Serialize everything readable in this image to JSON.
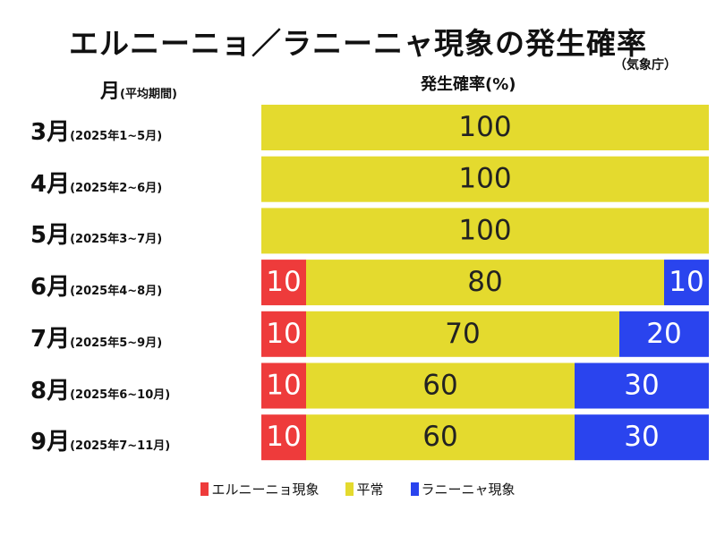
{
  "chart_data": {
    "type": "bar",
    "stacked": true,
    "orientation": "horizontal",
    "title": "エルニーニョ／ラニーニャ現象の発生確率",
    "source": "（気象庁）",
    "month_header": {
      "main": "月",
      "sub": "(平均期間)"
    },
    "value_header": "発生確率(%)",
    "categories": [
      {
        "main": "3月",
        "sub": "(2025年1~5月)"
      },
      {
        "main": "4月",
        "sub": "(2025年2~6月)"
      },
      {
        "main": "5月",
        "sub": "(2025年3~7月)"
      },
      {
        "main": "6月",
        "sub": "(2025年4~8月)"
      },
      {
        "main": "7月",
        "sub": "(2025年5~9月)"
      },
      {
        "main": "8月",
        "sub": "(2025年6~10月)"
      },
      {
        "main": "9月",
        "sub": "(2025年7~11月)"
      }
    ],
    "series": [
      {
        "name": "エルニーニョ現象",
        "color": "#ee3b3b",
        "values": [
          0,
          0,
          0,
          10,
          10,
          10,
          10
        ]
      },
      {
        "name": "平常",
        "color": "#e4da2e",
        "values": [
          100,
          100,
          100,
          80,
          70,
          60,
          60
        ]
      },
      {
        "name": "ラニーニャ現象",
        "color": "#2a44ee",
        "values": [
          0,
          0,
          0,
          10,
          20,
          30,
          30
        ]
      }
    ],
    "xlim": [
      0,
      100
    ],
    "legend_position": "bottom"
  }
}
